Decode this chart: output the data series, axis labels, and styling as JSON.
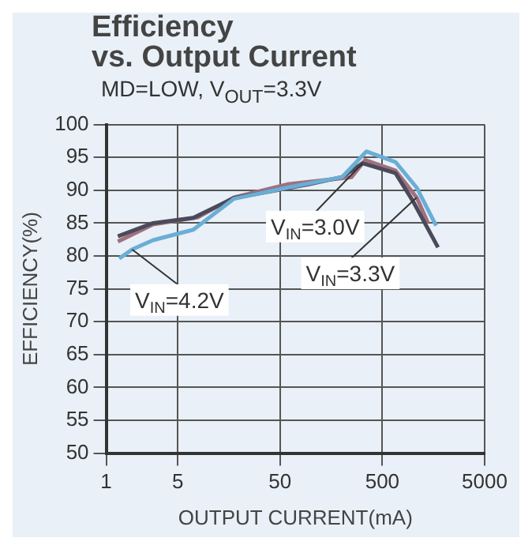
{
  "chart_data": {
    "type": "line",
    "title": "Efficiency\nvs. Output Current",
    "subtitle": "MD=LOW, V$_{OUT}$=3.3V",
    "xlabel": "OUTPUT CURRENT(mA)",
    "ylabel": "EFFICIENCY(%)",
    "log": "x",
    "xlim": [
      1,
      5000
    ],
    "xticks": [
      1,
      5,
      50,
      500,
      5000
    ],
    "ylim": [
      50,
      100
    ],
    "yticks": [
      50,
      55,
      60,
      65,
      70,
      75,
      80,
      85,
      90,
      95,
      100
    ],
    "grid": true,
    "legend": false,
    "series": [
      {
        "name": "V$_{IN}$=4.2V",
        "color": "#6aaed6",
        "x": [
          1.34,
          1.79,
          2.87,
          7.1,
          17.7,
          58.9,
          202,
          349,
          672,
          1083,
          1677
        ],
        "values": [
          79.6,
          81,
          82.4,
          84,
          88.7,
          90.4,
          92,
          95.9,
          94.3,
          90.4,
          84.6
        ]
      },
      {
        "name": "V$_{IN}$=3.0V",
        "color": "#4a4a5a",
        "x": [
          1.3,
          2.87,
          7.1,
          17.7,
          95,
          202,
          320,
          672,
          1000,
          1750
        ],
        "values": [
          83,
          85,
          85.8,
          88.8,
          90.9,
          92,
          94.1,
          92.6,
          88.3,
          81.3
        ]
      },
      {
        "name": "V$_{IN}$=3.3V",
        "color": "#a0707f",
        "x": [
          1.3,
          2.87,
          7.9,
          17.7,
          58.9,
          250,
          340,
          672,
          1083,
          1400
        ],
        "values": [
          82.2,
          84.8,
          85.9,
          88.9,
          90.9,
          92,
          94.6,
          93,
          88.9,
          85
        ]
      }
    ]
  }
}
